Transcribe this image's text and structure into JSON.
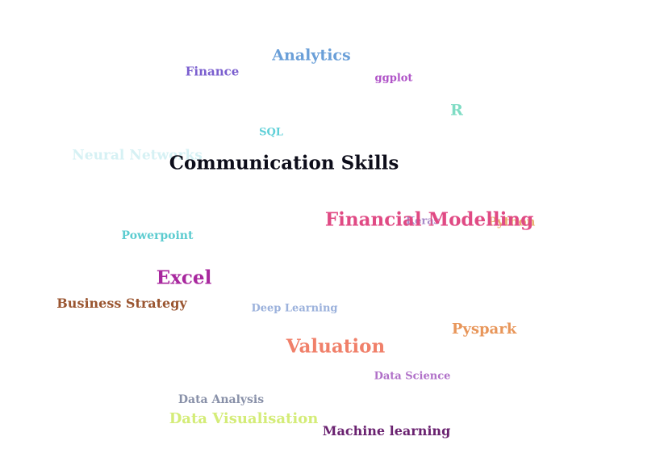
{
  "words": {
    "analytics": {
      "text": "Analytics",
      "color": "#6a9fd8"
    },
    "finance": {
      "text": "Finance",
      "color": "#7b5fcf"
    },
    "ggplot": {
      "text": "ggplot",
      "color": "#b054c8"
    },
    "r": {
      "text": "R",
      "color": "#7fdcc4"
    },
    "sql": {
      "text": "SQL",
      "color": "#5fd0d8"
    },
    "neural_networks": {
      "text": "Neural Networks",
      "color": "#d6f1f4"
    },
    "communication_skills": {
      "text": "Communication Skills",
      "color": "#0d0d1a"
    },
    "python": {
      "text": "Python",
      "color": "#e8b070"
    },
    "keras": {
      "text": "Keras",
      "color": "#a888c8"
    },
    "financial_modelling": {
      "text": "Financial Modelling",
      "color": "#e04a84"
    },
    "powerpoint": {
      "text": "Powerpoint",
      "color": "#5cccd0"
    },
    "excel": {
      "text": "Excel",
      "color": "#a8289e"
    },
    "business_strategy": {
      "text": "Business Strategy",
      "color": "#9a5530"
    },
    "deep_learning": {
      "text": "Deep Learning",
      "color": "#9cb2dc"
    },
    "pyspark": {
      "text": "Pyspark",
      "color": "#e8965a"
    },
    "valuation": {
      "text": "Valuation",
      "color": "#f0806a"
    },
    "data_science": {
      "text": "Data Science",
      "color": "#b070c8"
    },
    "data_analysis": {
      "text": "Data Analysis",
      "color": "#8890a8"
    },
    "data_visualisation": {
      "text": "Data Visualisation",
      "color": "#d4ec78"
    },
    "machine_learning": {
      "text": "Machine learning",
      "color": "#6a2270"
    }
  }
}
